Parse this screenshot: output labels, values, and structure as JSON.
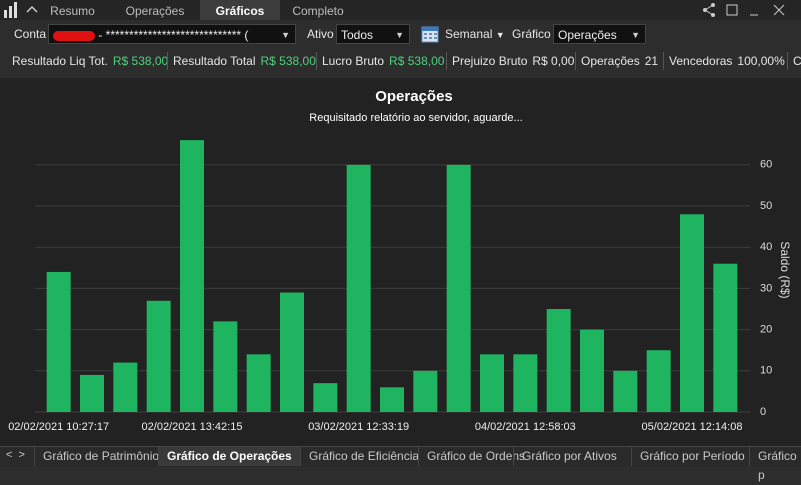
{
  "top_tabs": [
    "Resumo",
    "Operações",
    "Gráficos",
    "Completo"
  ],
  "filters": {
    "conta_label": "Conta",
    "conta_value": "- ***************************** (",
    "ativo_label": "Ativo",
    "ativo_value": "Todos",
    "period_value": "Semanal",
    "grafico_label": "Gráfico",
    "grafico_value": "Operações"
  },
  "stats": [
    {
      "label": "Resultado Liq Tot.",
      "value": "R$ 538,00"
    },
    {
      "label": "Resultado Total",
      "value": "R$ 538,00"
    },
    {
      "label": "Lucro Bruto",
      "value": "R$ 538,00"
    },
    {
      "label": "Prejuizo Bruto",
      "value": "R$ 0,00"
    },
    {
      "label": "Operações",
      "value": "21"
    },
    {
      "label": "Vencedoras",
      "value": "100,00%"
    },
    {
      "label": "C"
    }
  ],
  "chart_data": {
    "type": "bar",
    "title": "Operações",
    "subtitle": "Requisitado relatório ao servidor, aguarde...",
    "y_label": "Saldo (R$)",
    "categories": [
      "02/02/2021 10:27:17",
      null,
      null,
      null,
      "02/02/2021 13:42:15",
      null,
      null,
      null,
      null,
      "03/02/2021 12:33:19",
      null,
      null,
      null,
      null,
      "04/02/2021 12:58:03",
      null,
      null,
      null,
      null,
      "05/02/2021 12:14:08",
      null
    ],
    "values": [
      34,
      9,
      12,
      27,
      66,
      22,
      14,
      29,
      7,
      60,
      6,
      10,
      60,
      14,
      14,
      25,
      20,
      10,
      15,
      48,
      36
    ],
    "color": "#1fb45f",
    "ylim": [
      0,
      67
    ],
    "yticks": [
      0,
      10,
      20,
      30,
      40,
      50,
      60
    ],
    "grid": true
  },
  "bottom_tabs": [
    "Gráfico de Patrimônio",
    "Gráfico de Operações",
    "Gráfico de Eficiência",
    "Gráfico de Ordens",
    "Gráfico por Ativos",
    "Gráfico por Período",
    "Gráfico p"
  ]
}
